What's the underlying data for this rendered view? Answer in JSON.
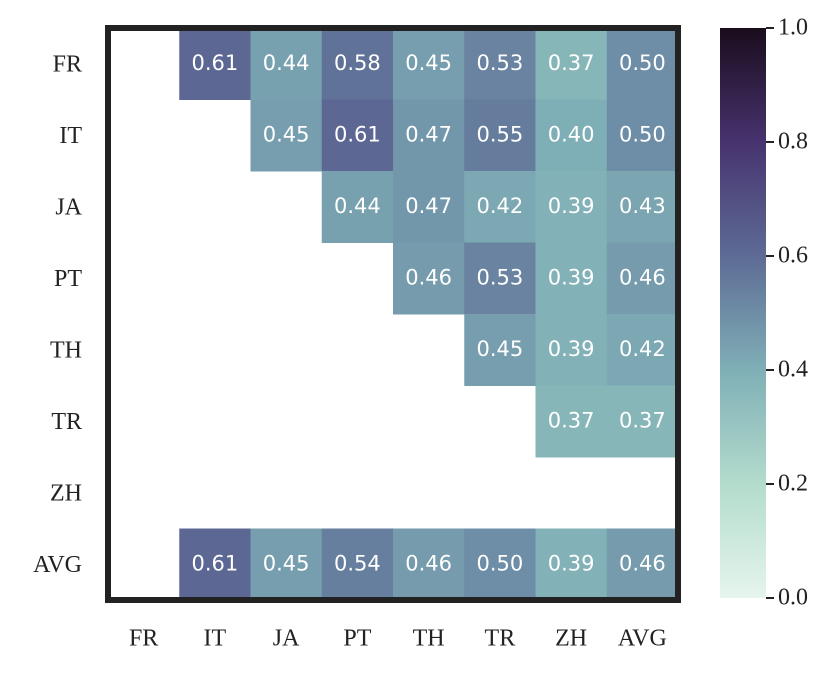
{
  "chart_data": {
    "type": "heatmap",
    "x_categories": [
      "FR",
      "IT",
      "JA",
      "PT",
      "TH",
      "TR",
      "ZH",
      "AVG"
    ],
    "y_categories": [
      "FR",
      "IT",
      "JA",
      "PT",
      "TH",
      "TR",
      "ZH",
      "AVG"
    ],
    "values": [
      [
        null,
        0.61,
        0.44,
        0.58,
        0.45,
        0.53,
        0.37,
        0.5
      ],
      [
        null,
        null,
        0.45,
        0.61,
        0.47,
        0.55,
        0.4,
        0.5
      ],
      [
        null,
        null,
        null,
        0.44,
        0.47,
        0.42,
        0.39,
        0.43
      ],
      [
        null,
        null,
        null,
        null,
        0.46,
        0.53,
        0.39,
        0.46
      ],
      [
        null,
        null,
        null,
        null,
        null,
        0.45,
        0.39,
        0.42
      ],
      [
        null,
        null,
        null,
        null,
        null,
        null,
        0.37,
        0.37
      ],
      [
        null,
        null,
        null,
        null,
        null,
        null,
        null,
        null
      ],
      [
        null,
        0.61,
        0.45,
        0.54,
        0.46,
        0.5,
        0.39,
        0.46
      ]
    ],
    "value_labels": [
      [
        null,
        "0.61",
        "0.44",
        "0.58",
        "0.45",
        "0.53",
        "0.37",
        "0.50"
      ],
      [
        null,
        null,
        "0.45",
        "0.61",
        "0.47",
        "0.55",
        "0.40",
        "0.50"
      ],
      [
        null,
        null,
        null,
        "0.44",
        "0.47",
        "0.42",
        "0.39",
        "0.43"
      ],
      [
        null,
        null,
        null,
        null,
        "0.46",
        "0.53",
        "0.39",
        "0.46"
      ],
      [
        null,
        null,
        null,
        null,
        null,
        "0.45",
        "0.39",
        "0.42"
      ],
      [
        null,
        null,
        null,
        null,
        null,
        null,
        "0.37",
        "0.37"
      ],
      [
        null,
        null,
        null,
        null,
        null,
        null,
        null,
        null
      ],
      [
        null,
        "0.61",
        "0.45",
        "0.54",
        "0.46",
        "0.50",
        "0.39",
        "0.46"
      ]
    ],
    "clim": [
      0,
      1
    ],
    "cticks": [
      {
        "value": 0,
        "label": "0.0"
      },
      0.2,
      0.4,
      0.6,
      0.8,
      {
        "value": 1,
        "label": "1.0"
      }
    ],
    "colors": [
      "#e6f5ee",
      "#b3dccd",
      "#7fafb6",
      "#5d6b95",
      "#47336f",
      "#1a0c1c"
    ]
  }
}
